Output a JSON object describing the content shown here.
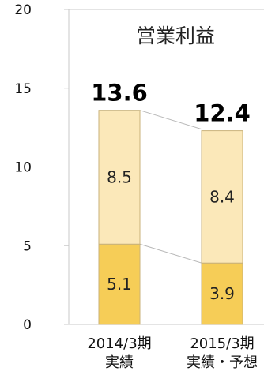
{
  "chart_data": {
    "type": "bar",
    "stacked": true,
    "title": "営業利益",
    "categories": [
      {
        "line1": "2014/3期",
        "line2": "実績"
      },
      {
        "line1": "2015/3期",
        "line2": "実績・予想"
      }
    ],
    "series": [
      {
        "values": [
          5.1,
          3.9
        ],
        "labels": [
          "5.1",
          "3.9"
        ],
        "color": "#f6cd57"
      },
      {
        "values": [
          8.5,
          8.4
        ],
        "labels": [
          "8.5",
          "8.4"
        ],
        "color": "#fbe8b9"
      }
    ],
    "totals": {
      "values": [
        13.6,
        12.4
      ],
      "labels": [
        "13.6",
        "12.4"
      ]
    },
    "ylim": [
      0,
      20
    ],
    "yticks": [
      {
        "value": 0,
        "label": "0"
      },
      {
        "value": 5,
        "label": "5"
      },
      {
        "value": 10,
        "label": "10"
      },
      {
        "value": 15,
        "label": "15"
      },
      {
        "value": 20,
        "label": "20"
      }
    ],
    "grid": false,
    "colors": {
      "bar_outline": "#c9b27a",
      "axis": "#c8c8c8",
      "connector": "#b8b8b8"
    }
  }
}
